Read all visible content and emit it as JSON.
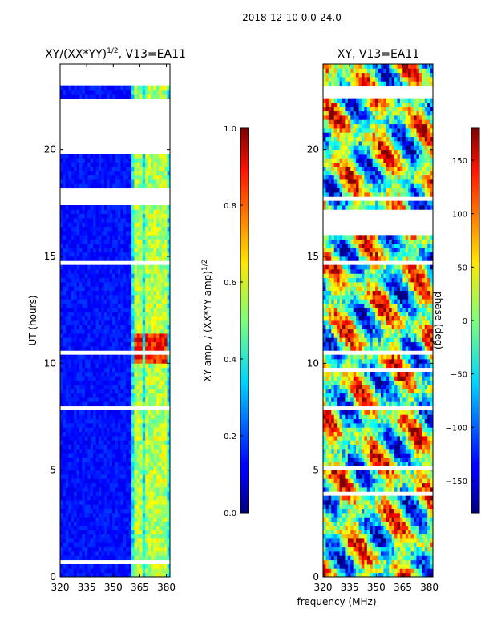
{
  "figure": {
    "suptitle": "2018-12-10 0.0-24.0",
    "xlabel": "frequency (MHz)"
  },
  "chart_data": [
    {
      "type": "heatmap",
      "title_main": "XY/(XX*YY)",
      "title_sup": "1/2",
      "title_tail": ", V13=EA11",
      "ylabel": "UT (hours)",
      "xlabel": "frequency (MHz)",
      "xlim": [
        320,
        382
      ],
      "ylim": [
        0,
        24
      ],
      "xticks": [
        320,
        335,
        350,
        365,
        380
      ],
      "yticks": [
        0,
        5,
        10,
        15,
        20
      ],
      "band_start_mhz": 360,
      "band_channels_mhz": [
        363,
        366,
        369,
        371,
        374,
        377,
        380
      ],
      "flagged_ut_gaps": [
        [
          17.5,
          18.2
        ],
        [
          19.9,
          22.5
        ],
        [
          23.1,
          23.9
        ]
      ],
      "colorbar": {
        "label_main": "XY amp. / (XX*YY amp)",
        "label_sup": "1/2",
        "range": [
          0.0,
          1.0
        ],
        "ticks": [
          "0.0",
          "0.2",
          "0.4",
          "0.6",
          "0.8",
          "1.0"
        ]
      }
    },
    {
      "type": "heatmap",
      "title": "XY, V13=EA11",
      "ylabel": "",
      "xlabel": "frequency (MHz)",
      "xlim": [
        320,
        382
      ],
      "ylim": [
        0,
        24
      ],
      "xticks": [
        320,
        335,
        350,
        365,
        380
      ],
      "yticks": [
        0,
        5,
        10,
        15,
        20
      ],
      "flagged_ut_gaps": [
        [
          16.0,
          17.2
        ],
        [
          22.5,
          23.0
        ]
      ],
      "colorbar": {
        "label": "phase (deg)",
        "range": [
          -180,
          180
        ],
        "ticks": [
          "−150",
          "−100",
          "−50",
          "0",
          "50",
          "100",
          "150"
        ]
      }
    }
  ]
}
